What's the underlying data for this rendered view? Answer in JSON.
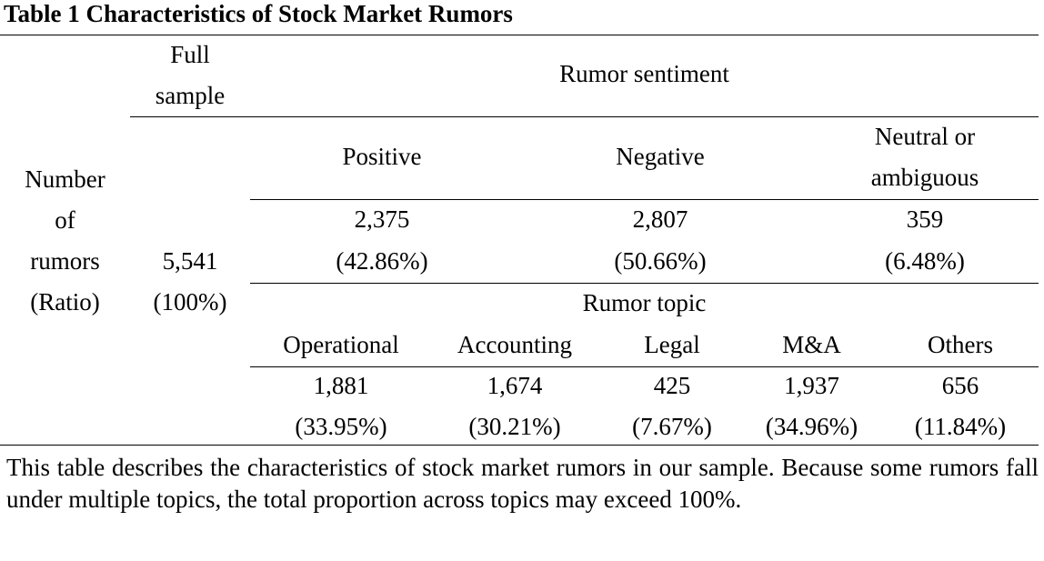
{
  "title": "Table 1 Characteristics of Stock Market Rumors",
  "row_header": [
    "Number",
    "of",
    "rumors",
    "(Ratio)"
  ],
  "full_sample": {
    "header": [
      "Full",
      "sample"
    ],
    "value": "5,541",
    "ratio": "(100%)"
  },
  "sentiment": {
    "group_label": "Rumor sentiment",
    "columns": [
      {
        "label": [
          "Positive"
        ],
        "value": "2,375",
        "ratio": "(42.86%)"
      },
      {
        "label": [
          "Negative"
        ],
        "value": "2,807",
        "ratio": "(50.66%)"
      },
      {
        "label": [
          "Neutral or",
          "ambiguous"
        ],
        "value": "359",
        "ratio": "(6.48%)"
      }
    ]
  },
  "topic": {
    "group_label": "Rumor topic",
    "columns": [
      {
        "label": "Operational",
        "value": "1,881",
        "ratio": "(33.95%)"
      },
      {
        "label": "Accounting",
        "value": "1,674",
        "ratio": "(30.21%)"
      },
      {
        "label": "Legal",
        "value": "425",
        "ratio": "(7.67%)"
      },
      {
        "label": "M&A",
        "value": "1,937",
        "ratio": "(34.96%)"
      },
      {
        "label": "Others",
        "value": "656",
        "ratio": "(11.84%)"
      }
    ]
  },
  "note": "This table describes the characteristics of stock market rumors in our sample. Because some rumors fall under multiple topics, the total proportion across topics may exceed 100%."
}
